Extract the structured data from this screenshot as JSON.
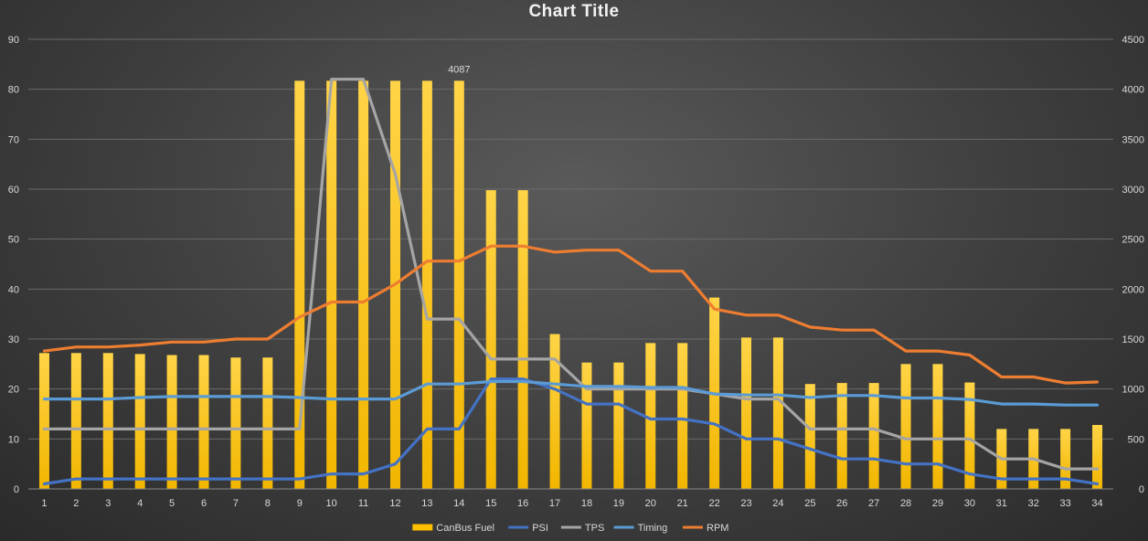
{
  "chart_data": {
    "type": "bar",
    "title": "Chart Title",
    "categories": [
      "1",
      "2",
      "3",
      "4",
      "5",
      "6",
      "7",
      "8",
      "9",
      "10",
      "11",
      "12",
      "13",
      "14",
      "15",
      "16",
      "17",
      "18",
      "19",
      "20",
      "21",
      "22",
      "23",
      "24",
      "25",
      "26",
      "27",
      "28",
      "29",
      "30",
      "31",
      "32",
      "33",
      "34"
    ],
    "y_left": {
      "min": 0,
      "max": 90,
      "ticks": [
        0,
        10,
        20,
        30,
        40,
        50,
        60,
        70,
        80,
        90
      ]
    },
    "y_right": {
      "min": 0,
      "max": 4500,
      "ticks": [
        0,
        500,
        1000,
        1500,
        2000,
        2500,
        3000,
        3500,
        4000,
        4500
      ]
    },
    "grid": true,
    "legend_position": "bottom",
    "series": [
      {
        "name": "CanBus Fuel",
        "kind": "bar",
        "axis": "left",
        "color": "#FFC000",
        "values": [
          27.2,
          27.2,
          27.2,
          27,
          26.8,
          26.8,
          26.3,
          26.3,
          81.7,
          81.7,
          81.7,
          81.7,
          81.7,
          81.7,
          59.8,
          59.8,
          31,
          25.3,
          25.3,
          29.2,
          29.2,
          38.3,
          30.3,
          30.3,
          21,
          21.2,
          21.2,
          25,
          25,
          21.3,
          12,
          12,
          12,
          12.8
        ]
      },
      {
        "name": "PSI",
        "kind": "line",
        "axis": "left",
        "color": "#4472C4",
        "values": [
          1,
          2,
          2,
          2,
          2,
          2,
          2,
          2,
          2,
          3,
          3,
          5,
          12,
          12,
          22,
          22,
          20,
          17,
          17,
          14,
          14,
          13,
          10,
          10,
          8,
          6,
          6,
          5,
          5,
          3,
          2,
          2,
          2,
          1
        ]
      },
      {
        "name": "TPS",
        "kind": "line",
        "axis": "left",
        "color": "#A5A5A5",
        "values": [
          12,
          12,
          12,
          12,
          12,
          12,
          12,
          12,
          12,
          82,
          82,
          63,
          34,
          34,
          26,
          26,
          26,
          20,
          20,
          20,
          20,
          19,
          18,
          18,
          12,
          12,
          12,
          10,
          10,
          10,
          6,
          6,
          4,
          4
        ]
      },
      {
        "name": "Timing",
        "kind": "line",
        "axis": "left",
        "color": "#5B9BD5",
        "values": [
          18,
          18,
          18,
          18.3,
          18.5,
          18.5,
          18.5,
          18.5,
          18.3,
          18,
          18,
          18,
          21,
          21,
          21.5,
          21.5,
          21,
          20.5,
          20.5,
          20.3,
          20.3,
          19,
          18.8,
          18.8,
          18.3,
          18.7,
          18.7,
          18.2,
          18.2,
          17.9,
          17,
          17,
          16.8,
          16.8
        ]
      },
      {
        "name": "RPM",
        "kind": "line",
        "axis": "right",
        "color": "#ED7D31",
        "values": [
          1380,
          1420,
          1420,
          1440,
          1470,
          1470,
          1500,
          1500,
          1720,
          1870,
          1870,
          2050,
          2280,
          2280,
          2430,
          2430,
          2370,
          2390,
          2390,
          2180,
          2180,
          1800,
          1740,
          1740,
          1620,
          1590,
          1590,
          1380,
          1380,
          1340,
          1120,
          1120,
          1060,
          1070
        ]
      }
    ],
    "annotations": [
      {
        "series": "CanBus Fuel",
        "category": "14",
        "text": "4087"
      }
    ]
  }
}
